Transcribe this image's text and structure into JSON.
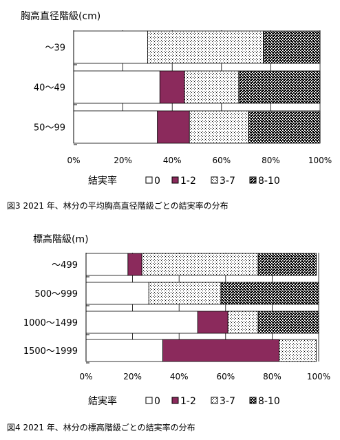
{
  "chart_data": [
    {
      "type": "bar",
      "stacked": true,
      "orientation": "horizontal",
      "ylabel": "胸高直径階級(cm)",
      "categories": [
        "～39",
        "40～49",
        "50～99"
      ],
      "series": [
        {
          "name": "0",
          "values": [
            30,
            35,
            34
          ]
        },
        {
          "name": "1-2",
          "values": [
            0,
            10,
            13
          ]
        },
        {
          "name": "3-7",
          "values": [
            47,
            22,
            24
          ]
        },
        {
          "name": "8-10",
          "values": [
            23,
            33,
            29
          ]
        }
      ],
      "xlim": [
        0,
        100
      ],
      "xticks": [
        "0%",
        "20%",
        "40%",
        "60%",
        "80%",
        "100%"
      ],
      "legend_title": "結実率",
      "legend_position": "bottom",
      "caption": "図3  2021 年、林分の平均胸高直径階級ごとの結実率の分布"
    },
    {
      "type": "bar",
      "stacked": true,
      "orientation": "horizontal",
      "ylabel": "標高階級(m)",
      "categories": [
        "～499",
        "500～999",
        "1000～1499",
        "1500～1999"
      ],
      "series": [
        {
          "name": "0",
          "values": [
            18,
            27,
            48,
            33
          ]
        },
        {
          "name": "1-2",
          "values": [
            6,
            0,
            13,
            50
          ]
        },
        {
          "name": "3-7",
          "values": [
            50,
            31,
            13,
            16
          ]
        },
        {
          "name": "8-10",
          "values": [
            25,
            42,
            26,
            0
          ]
        }
      ],
      "xlim": [
        0,
        100
      ],
      "xticks": [
        "0%",
        "20%",
        "40%",
        "60%",
        "80%",
        "100%"
      ],
      "legend_title": "結実率",
      "legend_position": "bottom",
      "caption": "図4  2021 年、林分の標高階級ごとの結実率の分布"
    }
  ]
}
